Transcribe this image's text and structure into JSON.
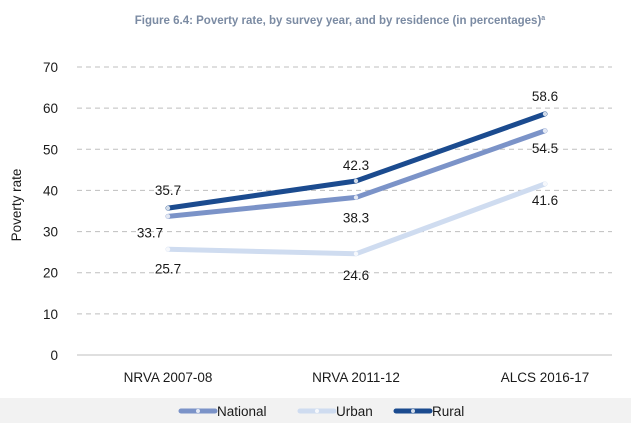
{
  "chart_data": {
    "type": "line",
    "title": "Figure 6.4: Poverty rate, by survey year, and by residence (in percentages)",
    "title_superscript": "a",
    "xlabel": "",
    "ylabel": "Poverty rate",
    "categories": [
      "NRVA 2007-08",
      "NRVA 2011-12",
      "ALCS 2016-17"
    ],
    "ylim": [
      0,
      70
    ],
    "yticks": [
      0,
      10,
      20,
      30,
      40,
      50,
      60,
      70
    ],
    "grid": true,
    "legend_position": "bottom",
    "series": [
      {
        "name": "National",
        "values": [
          33.7,
          38.3,
          54.5
        ],
        "labels": [
          "33.7",
          "38.3",
          "54.5"
        ],
        "color": "#7b93c8"
      },
      {
        "name": "Urban",
        "values": [
          25.7,
          24.6,
          41.6
        ],
        "labels": [
          "25.7",
          "24.6",
          "41.6"
        ],
        "color": "#cfdcf0"
      },
      {
        "name": "Rural",
        "values": [
          35.7,
          42.3,
          58.6
        ],
        "labels": [
          "35.7",
          "42.3",
          "58.6"
        ],
        "color": "#1b4b8f"
      }
    ]
  }
}
